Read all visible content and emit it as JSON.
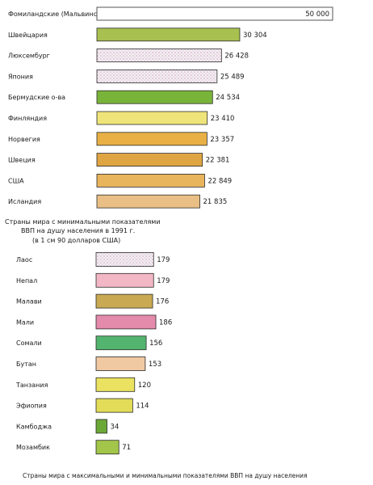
{
  "caption": "Страны мира с максимальными и минимальными показателями ВВП на душу населения",
  "chart_data": [
    {
      "type": "bar",
      "orientation": "horizontal",
      "title": "",
      "categories": [
        "Фомиландские (Мальвинские) о-ва",
        "Швейцария",
        "Люксембург",
        "Япония",
        "Бермудские о-ва",
        "Финляндия",
        "Норвегия",
        "Швеция",
        "США",
        "Исландия"
      ],
      "values": [
        50000,
        30304,
        26428,
        25489,
        24534,
        23410,
        23357,
        22381,
        22849,
        21835
      ],
      "value_labels": [
        "50 000",
        "30 304",
        "26 428",
        "25 489",
        "24 534",
        "23 410",
        "23 357",
        "22 381",
        "22 849",
        "21 835"
      ],
      "colors": [
        "#ffffff",
        "#a8c050",
        "#ffffff",
        "#e8d4dc",
        "#79b43a",
        "#efe47a",
        "#e9b045",
        "#dea542",
        "#e8b45c",
        "#e9bf85"
      ],
      "hatch": [
        false,
        false,
        true,
        true,
        false,
        false,
        false,
        false,
        false,
        false
      ]
    },
    {
      "type": "bar",
      "orientation": "horizontal",
      "title": "Страны мира с минимальными показателями ВВП на душу населения в 1991 г.",
      "subtitle": "(в 1 см 90 долларов США)",
      "categories": [
        "Лаос",
        "Непал",
        "Малави",
        "Мали",
        "Сомали",
        "Бутан",
        "Танзания",
        "Эфиопия",
        "Камбоджа",
        "Мозамбик"
      ],
      "values": [
        179,
        179,
        176,
        186,
        156,
        153,
        120,
        114,
        34,
        71
      ],
      "value_labels": [
        "179",
        "179",
        "176",
        "186",
        "156",
        "153",
        "120",
        "114",
        "34",
        "71"
      ],
      "colors": [
        "#ffffff",
        "#f2b6c4",
        "#c9aa52",
        "#e48aaa",
        "#52b46e",
        "#f0c8a2",
        "#eae260",
        "#e2dc58",
        "#6ca838",
        "#a2c54a"
      ],
      "hatch": [
        true,
        false,
        false,
        false,
        false,
        false,
        false,
        false,
        false,
        false
      ]
    }
  ]
}
